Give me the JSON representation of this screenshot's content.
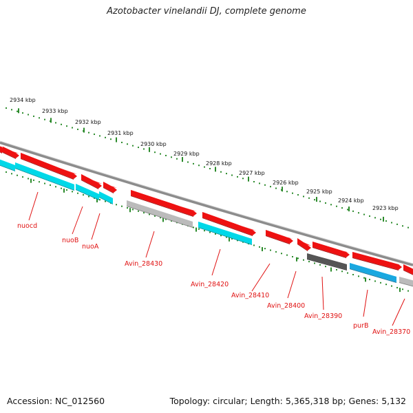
{
  "title": "Azotobacter vinelandii DJ, complete genome",
  "footer": {
    "accession": "Accession: NC_012560",
    "summary": "Topology: circular; Length: 5,365,318 bp; Genes: 5,132"
  },
  "ruler": {
    "unit": "kbp",
    "ticks": [
      "2934 kbp",
      "2933 kbp",
      "2932 kbp",
      "2931 kbp",
      "2930 kbp",
      "2929 kbp",
      "2928 kbp",
      "2927 kbp",
      "2926 kbp",
      "2925 kbp",
      "2924 kbp",
      "2923 kbp"
    ]
  },
  "colors": {
    "forward_gene": "#ee1111",
    "reverse_gene": "#00d8e8",
    "reverse_gene_alt": "#1aa8e0",
    "pseudo_gene": "#bbbbbb",
    "dark_gene": "#555555",
    "backbone": "#888888",
    "tick": "#2a8a2a",
    "label": "#e01010"
  },
  "genes": [
    {
      "name": "nuocd"
    },
    {
      "name": "nuoB"
    },
    {
      "name": "nuoA"
    },
    {
      "name": "Avin_28430"
    },
    {
      "name": "Avin_28420"
    },
    {
      "name": "Avin_28410"
    },
    {
      "name": "Avin_28400"
    },
    {
      "name": "Avin_28390"
    },
    {
      "name": "purB"
    },
    {
      "name": "Avin_28370"
    }
  ]
}
